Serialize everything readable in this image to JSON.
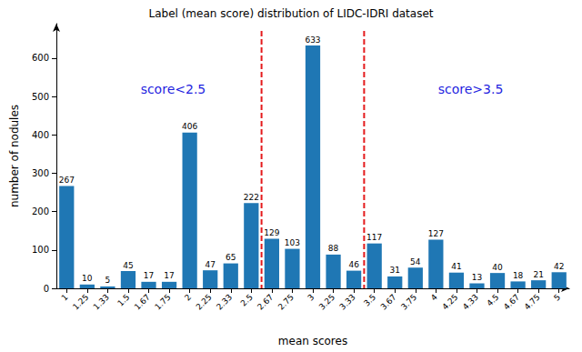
{
  "chart_data": {
    "type": "bar",
    "title": "Label (mean score) distribution of LIDC-IDRI dataset",
    "x_label": "mean scores",
    "y_label": "number of nodules",
    "categories": [
      "1",
      "1.25",
      "1.33",
      "1.5",
      "1.67",
      "1.75",
      "2",
      "2.25",
      "2.33",
      "2.5",
      "2.67",
      "2.75",
      "3",
      "3.25",
      "3.33",
      "3.5",
      "3.67",
      "3.75",
      "4",
      "4.25",
      "4.33",
      "4.5",
      "4.67",
      "4.75",
      "5"
    ],
    "values": [
      267,
      10,
      5,
      45,
      17,
      17,
      406,
      47,
      65,
      222,
      129,
      103,
      633,
      88,
      46,
      117,
      31,
      54,
      127,
      41,
      13,
      40,
      18,
      21,
      42
    ],
    "color": "#1f77b4",
    "ylim": [
      0,
      690
    ],
    "yticks": [
      0,
      100,
      200,
      300,
      400,
      500,
      600
    ],
    "grid": false,
    "data_labels": true,
    "annotations": [
      {
        "text": "score<2.5",
        "category": "2.5",
        "side": "left"
      },
      {
        "text": "score>3.5",
        "category": "3.5",
        "side": "right"
      }
    ]
  }
}
